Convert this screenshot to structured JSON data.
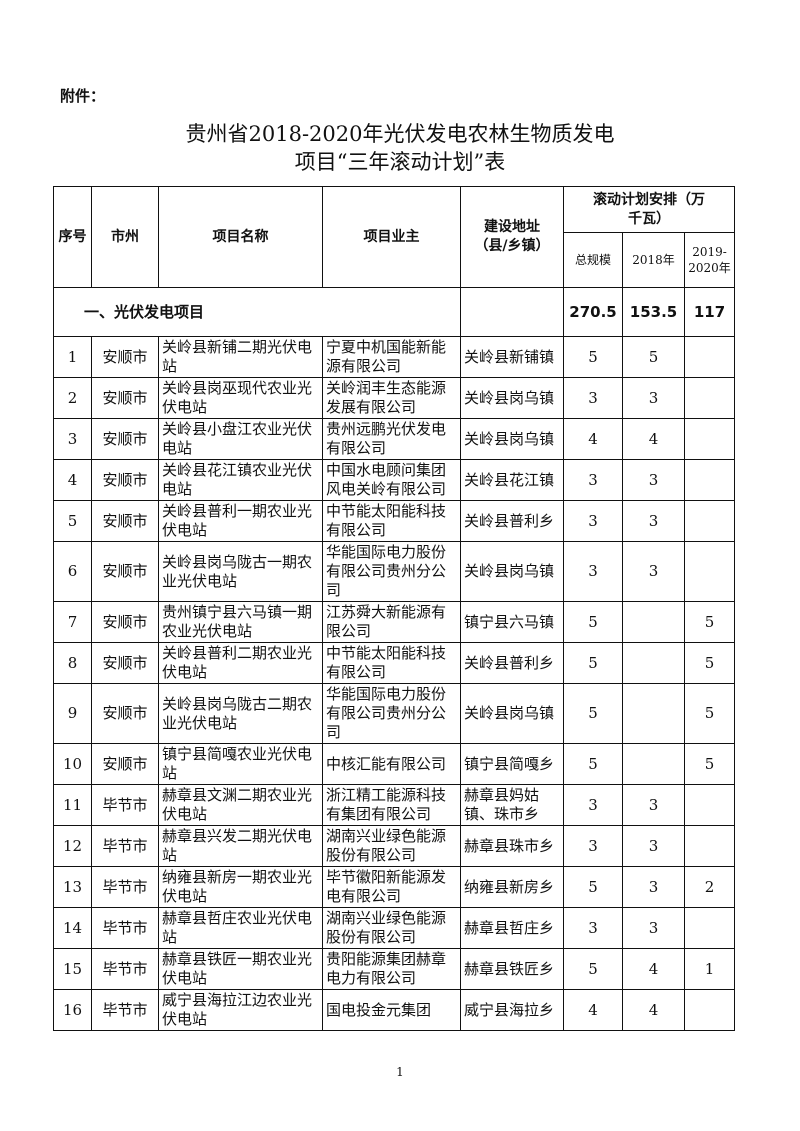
{
  "attachment_label": "附件：",
  "title_line1": "贵州省2018-2020年光伏发电农林生物质发电",
  "title_line2": "项目“三年滚动计划”表",
  "headers": {
    "no": "序号",
    "city": "市州",
    "name": "项目名称",
    "owner": "项目业主",
    "address": "建设地址（县/乡镇）",
    "plan": "滚动计划安排（万千瓦）",
    "total": "总规模",
    "y2018": "2018年",
    "y2019_2020": "2019-2020年"
  },
  "section": {
    "label": "一、光伏发电项目",
    "total": "270.5",
    "y2018": "153.5",
    "y2019_2020": "117"
  },
  "rows": [
    {
      "no": "1",
      "city": "安顺市",
      "name": "关岭县新铺二期光伏电站",
      "owner": "宁夏中机国能新能源有限公司",
      "address": "关岭县新铺镇",
      "total": "5",
      "y2018": "5",
      "y2019_2020": ""
    },
    {
      "no": "2",
      "city": "安顺市",
      "name": "关岭县岗巫现代农业光伏电站",
      "owner": "关岭润丰生态能源发展有限公司",
      "address": "关岭县岗乌镇",
      "total": "3",
      "y2018": "3",
      "y2019_2020": ""
    },
    {
      "no": "3",
      "city": "安顺市",
      "name": "关岭县小盘江农业光伏电站",
      "owner": "贵州远鹏光伏发电有限公司",
      "address": "关岭县岗乌镇",
      "total": "4",
      "y2018": "4",
      "y2019_2020": ""
    },
    {
      "no": "4",
      "city": "安顺市",
      "name": "关岭县花江镇农业光伏电站",
      "owner": "中国水电顾问集团风电关岭有限公司",
      "address": "关岭县花江镇",
      "total": "3",
      "y2018": "3",
      "y2019_2020": ""
    },
    {
      "no": "5",
      "city": "安顺市",
      "name": "关岭县普利一期农业光伏电站",
      "owner": "中节能太阳能科技有限公司",
      "address": "关岭县普利乡",
      "total": "3",
      "y2018": "3",
      "y2019_2020": ""
    },
    {
      "no": "6",
      "city": "安顺市",
      "name": "关岭县岗乌陇古一期农业光伏电站",
      "owner": "华能国际电力股份有限公司贵州分公司",
      "address": "关岭县岗乌镇",
      "total": "3",
      "y2018": "3",
      "y2019_2020": ""
    },
    {
      "no": "7",
      "city": "安顺市",
      "name": "贵州镇宁县六马镇一期农业光伏电站",
      "owner": "江苏舜大新能源有限公司",
      "address": "镇宁县六马镇",
      "total": "5",
      "y2018": "",
      "y2019_2020": "5"
    },
    {
      "no": "8",
      "city": "安顺市",
      "name": "关岭县普利二期农业光伏电站",
      "owner": "中节能太阳能科技有限公司",
      "address": "关岭县普利乡",
      "total": "5",
      "y2018": "",
      "y2019_2020": "5"
    },
    {
      "no": "9",
      "city": "安顺市",
      "name": "关岭县岗乌陇古二期农业光伏电站",
      "owner": "华能国际电力股份有限公司贵州分公司",
      "address": "关岭县岗乌镇",
      "total": "5",
      "y2018": "",
      "y2019_2020": "5"
    },
    {
      "no": "10",
      "city": "安顺市",
      "name": "镇宁县简嘎农业光伏电站",
      "owner": "中核汇能有限公司",
      "address": "镇宁县简嘎乡",
      "total": "5",
      "y2018": "",
      "y2019_2020": "5"
    },
    {
      "no": "11",
      "city": "毕节市",
      "name": "赫章县文渊二期农业光伏电站",
      "owner": "浙江精工能源科技有集团有限公司",
      "address": "赫章县妈姑镇、珠市乡",
      "total": "3",
      "y2018": "3",
      "y2019_2020": ""
    },
    {
      "no": "12",
      "city": "毕节市",
      "name": "赫章县兴发二期光伏电站",
      "owner": "湖南兴业绿色能源股份有限公司",
      "address": "赫章县珠市乡",
      "total": "3",
      "y2018": "3",
      "y2019_2020": ""
    },
    {
      "no": "13",
      "city": "毕节市",
      "name": "纳雍县新房一期农业光伏电站",
      "owner": "毕节徽阳新能源发电有限公司",
      "address": "纳雍县新房乡",
      "total": "5",
      "y2018": "3",
      "y2019_2020": "2"
    },
    {
      "no": "14",
      "city": "毕节市",
      "name": "赫章县哲庄农业光伏电站",
      "owner": "湖南兴业绿色能源股份有限公司",
      "address": "赫章县哲庄乡",
      "total": "3",
      "y2018": "3",
      "y2019_2020": ""
    },
    {
      "no": "15",
      "city": "毕节市",
      "name": "赫章县铁匠一期农业光伏电站",
      "owner": "贵阳能源集团赫章电力有限公司",
      "address": "赫章县铁匠乡",
      "total": "5",
      "y2018": "4",
      "y2019_2020": "1"
    },
    {
      "no": "16",
      "city": "毕节市",
      "name": "威宁县海拉江边农业光伏电站",
      "owner": "国电投金元集团",
      "address": "威宁县海拉乡",
      "total": "4",
      "y2018": "4",
      "y2019_2020": ""
    }
  ],
  "page_number": "1"
}
